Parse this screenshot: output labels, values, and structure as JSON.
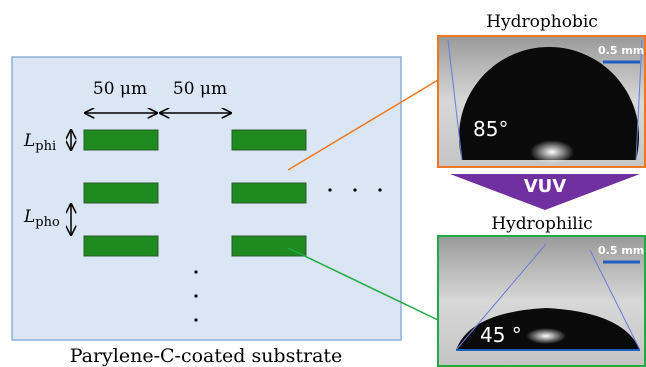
{
  "substrate": {
    "caption": "Parylene-C-coated substrate",
    "spacing_labels": [
      "50 μm",
      "50 μm"
    ],
    "l_phi": {
      "symbol": "L",
      "sub": "phi"
    },
    "l_pho": {
      "symbol": "L",
      "sub": "pho"
    }
  },
  "hydrophobic": {
    "title": "Hydrophobic",
    "angle": "85°",
    "scale": "0.5 mm"
  },
  "treatment": {
    "label": "VUV"
  },
  "hydrophilic": {
    "title": "Hydrophilic",
    "angle": "45 °",
    "scale": "0.5 mm"
  }
}
